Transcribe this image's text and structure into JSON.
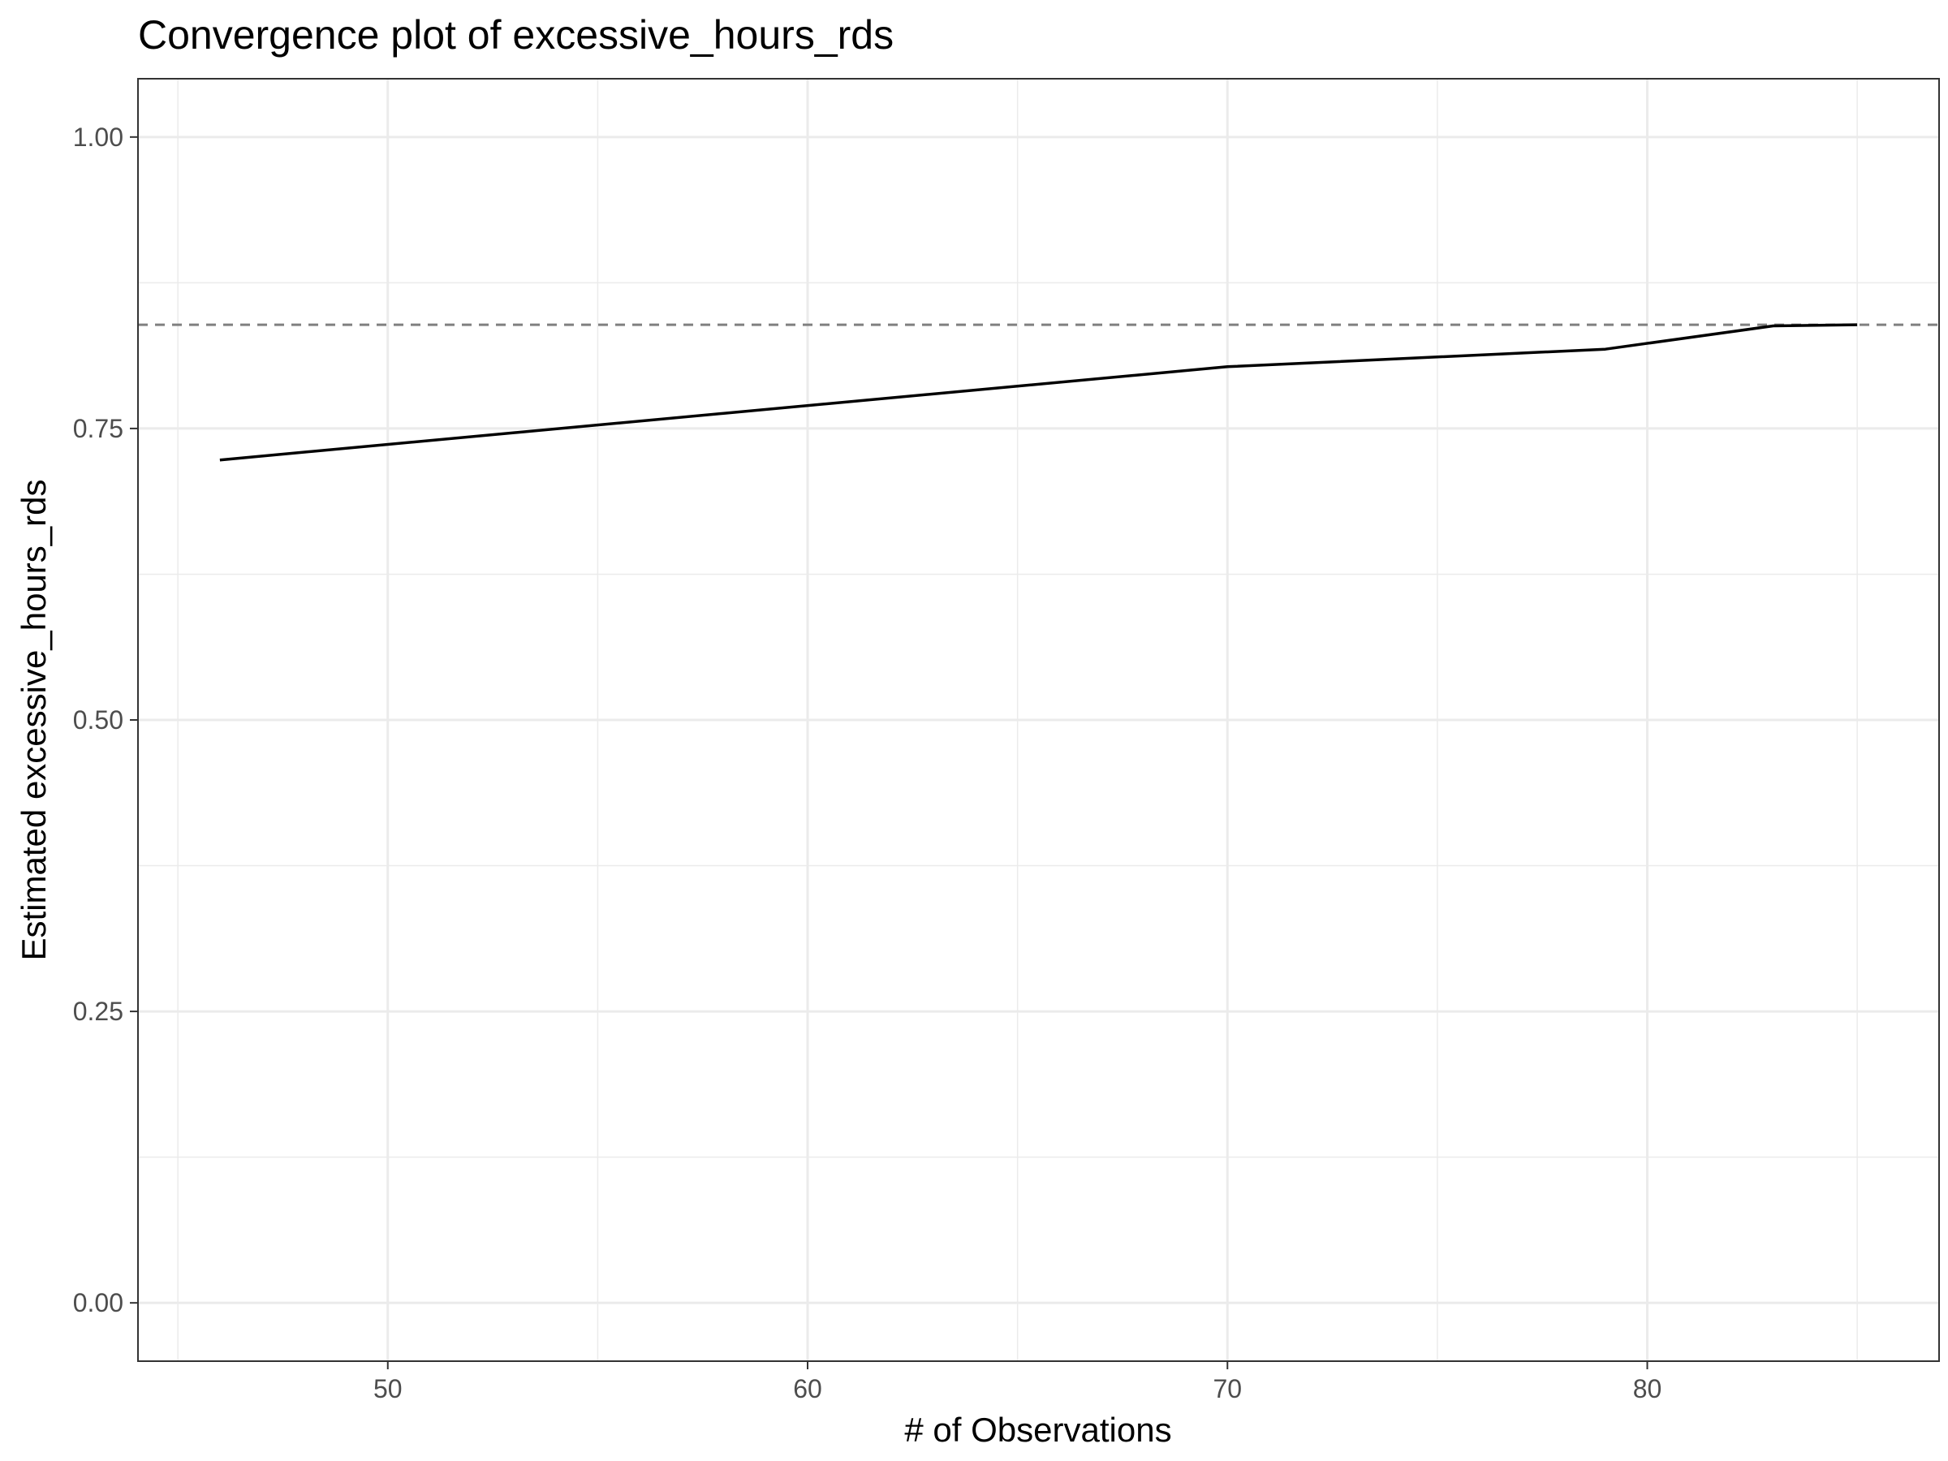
{
  "chart_data": {
    "type": "line",
    "title": "Convergence plot of excessive_hours_rds",
    "xlabel": "# of Observations",
    "ylabel": "Estimated excessive_hours_rds",
    "xlim": [
      44.05,
      86.95
    ],
    "ylim": [
      -0.05,
      1.05
    ],
    "x_ticks": [
      50,
      60,
      70,
      80
    ],
    "x_tick_labels": [
      "50",
      "60",
      "70",
      "80"
    ],
    "x_minor_ticks": [
      45,
      55,
      65,
      75,
      85
    ],
    "y_ticks": [
      0,
      0.25,
      0.5,
      0.75,
      1
    ],
    "y_tick_labels": [
      "0.00",
      "0.25",
      "0.50",
      "0.75",
      "1.00"
    ],
    "y_minor_ticks": [
      0.125,
      0.375,
      0.625,
      0.875
    ],
    "grid": true,
    "series": [
      {
        "x": [
          46,
          70,
          79,
          83,
          85
        ],
        "y": [
          0.723,
          0.803,
          0.818,
          0.838,
          0.839
        ],
        "color": "#000000"
      }
    ],
    "reference_line": {
      "y": 0.839,
      "style": "dashed",
      "color": "#808080"
    }
  }
}
